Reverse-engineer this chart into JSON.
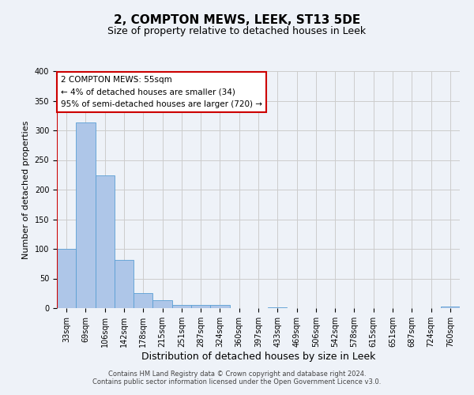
{
  "title": "2, COMPTON MEWS, LEEK, ST13 5DE",
  "subtitle": "Size of property relative to detached houses in Leek",
  "xlabel": "Distribution of detached houses by size in Leek",
  "ylabel": "Number of detached properties",
  "bar_labels": [
    "33sqm",
    "69sqm",
    "106sqm",
    "142sqm",
    "178sqm",
    "215sqm",
    "251sqm",
    "287sqm",
    "324sqm",
    "360sqm",
    "397sqm",
    "433sqm",
    "469sqm",
    "506sqm",
    "542sqm",
    "578sqm",
    "615sqm",
    "651sqm",
    "687sqm",
    "724sqm",
    "760sqm"
  ],
  "bar_values": [
    100,
    313,
    224,
    82,
    26,
    14,
    5,
    5,
    5,
    0,
    0,
    2,
    0,
    0,
    0,
    0,
    0,
    0,
    0,
    0,
    3
  ],
  "bar_color": "#aec6e8",
  "bar_edge_color": "#5a9fd4",
  "annotation_line1": "2 COMPTON MEWS: 55sqm",
  "annotation_line2": "← 4% of detached houses are smaller (34)",
  "annotation_line3": "95% of semi-detached houses are larger (720) →",
  "annotation_box_color": "#ffffff",
  "annotation_box_edge_color": "#cc0000",
  "vline_color": "#cc0000",
  "ylim": [
    0,
    400
  ],
  "yticks": [
    0,
    50,
    100,
    150,
    200,
    250,
    300,
    350,
    400
  ],
  "grid_color": "#cccccc",
  "background_color": "#eef2f8",
  "footer_line1": "Contains HM Land Registry data © Crown copyright and database right 2024.",
  "footer_line2": "Contains public sector information licensed under the Open Government Licence v3.0.",
  "title_fontsize": 11,
  "subtitle_fontsize": 9,
  "xlabel_fontsize": 9,
  "ylabel_fontsize": 8,
  "tick_fontsize": 7,
  "footer_fontsize": 6
}
